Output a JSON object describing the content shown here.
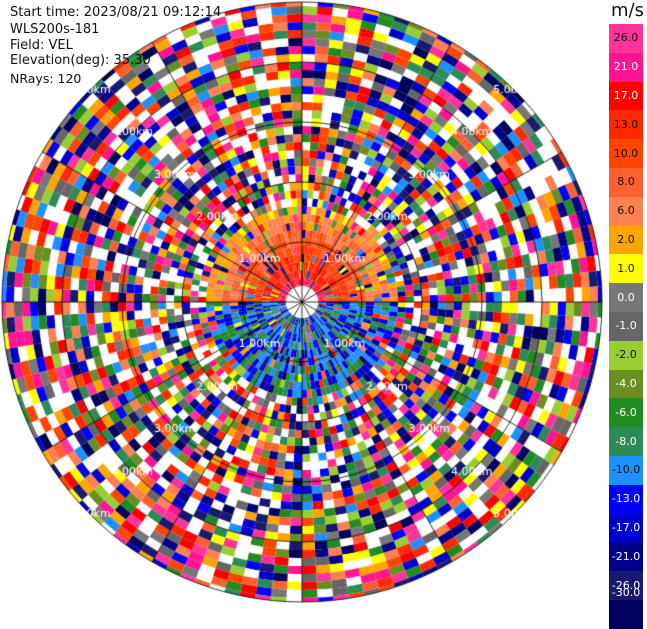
{
  "info": {
    "start_time": "Start time: 2023/08/21 09:12:14",
    "instrument": "WLS200s-181",
    "field": "Field: VEL",
    "elevation": "Elevation(deg): 35.30",
    "nrays": "NRays: 120"
  },
  "colorbar": {
    "unit": "m/s",
    "ticks": [
      "26.0",
      "21.0",
      "17.0",
      "13.0",
      "10.0",
      "8.0",
      "6.0",
      "2.0",
      "1.0",
      "0.0",
      "-1.0",
      "-2.0",
      "-4.0",
      "-6.0",
      "-8.0",
      "-10.0",
      "-13.0",
      "-17.0",
      "-21.0",
      "-26.0",
      "-30.0"
    ],
    "bands": [
      {
        "color": "#ff3399"
      },
      {
        "color": "#ff1493"
      },
      {
        "color": "#ff0000"
      },
      {
        "color": "#ff2800"
      },
      {
        "color": "#ff4500"
      },
      {
        "color": "#ff6030"
      },
      {
        "color": "#ff8050"
      },
      {
        "color": "#ffa500"
      },
      {
        "color": "#ffff00"
      },
      {
        "color": "#777777"
      },
      {
        "color": "#666666"
      },
      {
        "color": "#9acd32"
      },
      {
        "color": "#6b8e23"
      },
      {
        "color": "#228b22"
      },
      {
        "color": "#2e8b57"
      },
      {
        "color": "#1e90ff"
      },
      {
        "color": "#0000ff"
      },
      {
        "color": "#0000cd"
      },
      {
        "color": "#00008b"
      },
      {
        "color": "#191970"
      },
      {
        "color": "#000060"
      }
    ]
  },
  "chart_data": {
    "type": "heatmap",
    "projection": "polar (PPI)",
    "field": "VEL",
    "units": "m/s",
    "nrays": 120,
    "range_ring_labels": [
      "1.00km",
      "2.00km",
      "3.00km",
      "4.00km",
      "5.00km"
    ],
    "range_rings_km": [
      1,
      2,
      3,
      4,
      5
    ],
    "colormap": {
      "levels": [
        26.0,
        21.0,
        17.0,
        13.0,
        10.0,
        8.0,
        6.0,
        2.0,
        1.0,
        0.0,
        -1.0,
        -2.0,
        -4.0,
        -6.0,
        -8.0,
        -10.0,
        -13.0,
        -17.0,
        -21.0,
        -26.0,
        -30.0
      ]
    },
    "pattern": {
      "near_range_km": [
        0,
        1.5
      ],
      "near_range_north_half": "positive velocities (red/orange/yellow)",
      "near_range_south_half": "negative velocities (blue)",
      "far_range": "noisy, all colors"
    }
  }
}
